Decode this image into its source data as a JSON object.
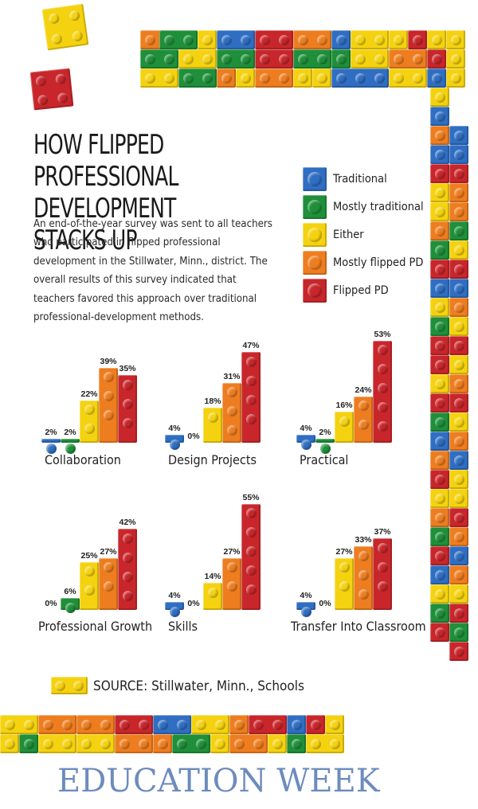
{
  "header": {
    "title": "HOW FLIPPED PROFESSIONAL DEVELOPMENT STACKS UP",
    "intro": "An end-of-the-year survey was sent to all teachers who participated in flipped professional development in the Stillwater, Minn., district. The overall results of this survey indicated that teachers favored this approach over traditional professional-development methods."
  },
  "colors": {
    "Traditional": "#2f6ec2",
    "Mostly traditional": "#1f8f3a",
    "Either": "#f5d20f",
    "Mostly flipped PD": "#ee7d1f",
    "Flipped PD": "#c8262b"
  },
  "legend": [
    {
      "label": "Traditional"
    },
    {
      "label": "Mostly traditional"
    },
    {
      "label": "Either"
    },
    {
      "label": "Mostly flipped PD"
    },
    {
      "label": "Flipped PD"
    }
  ],
  "chart_data": [
    {
      "type": "bar",
      "title": "Collaboration",
      "categories": [
        "Traditional",
        "Mostly traditional",
        "Either",
        "Mostly flipped PD",
        "Flipped PD"
      ],
      "values": [
        2,
        2,
        22,
        39,
        35
      ],
      "labels": [
        "2%",
        "2%",
        "22%",
        "39%",
        "35%"
      ],
      "ylim": [
        0,
        55
      ]
    },
    {
      "type": "bar",
      "title": "Design Projects",
      "categories": [
        "Traditional",
        "Mostly traditional",
        "Either",
        "Mostly flipped PD",
        "Flipped PD"
      ],
      "values": [
        4,
        0,
        18,
        31,
        47
      ],
      "labels": [
        "4%",
        "0%",
        "18%",
        "31%",
        "47%"
      ],
      "ylim": [
        0,
        55
      ]
    },
    {
      "type": "bar",
      "title": "Practical",
      "categories": [
        "Traditional",
        "Mostly traditional",
        "Either",
        "Mostly flipped PD",
        "Flipped PD"
      ],
      "values": [
        4,
        2,
        16,
        24,
        53
      ],
      "labels": [
        "4%",
        "2%",
        "16%",
        "24%",
        "53%"
      ],
      "ylim": [
        0,
        55
      ]
    },
    {
      "type": "bar",
      "title": "Professional Growth",
      "categories": [
        "Traditional",
        "Mostly traditional",
        "Either",
        "Mostly flipped PD",
        "Flipped PD"
      ],
      "values": [
        0,
        6,
        25,
        27,
        42
      ],
      "labels": [
        "0%",
        "6%",
        "25%",
        "27%",
        "42%"
      ],
      "ylim": [
        0,
        55
      ]
    },
    {
      "type": "bar",
      "title": "Skills",
      "categories": [
        "Traditional",
        "Mostly traditional",
        "Either",
        "Mostly flipped PD",
        "Flipped PD"
      ],
      "values": [
        4,
        0,
        14,
        27,
        55
      ],
      "labels": [
        "4%",
        "0%",
        "14%",
        "27%",
        "55%"
      ],
      "ylim": [
        0,
        55
      ]
    },
    {
      "type": "bar",
      "title": "Transfer Into Classroom",
      "categories": [
        "Traditional",
        "Mostly traditional",
        "Either",
        "Mostly flipped PD",
        "Flipped PD"
      ],
      "values": [
        4,
        0,
        27,
        33,
        37
      ],
      "labels": [
        "4%",
        "0%",
        "27%",
        "33%",
        "37%"
      ],
      "ylim": [
        0,
        55
      ]
    }
  ],
  "source": "SOURCE: Stillwater, Minn., Schools",
  "logo": {
    "text": "EDUCATION WEEK"
  }
}
